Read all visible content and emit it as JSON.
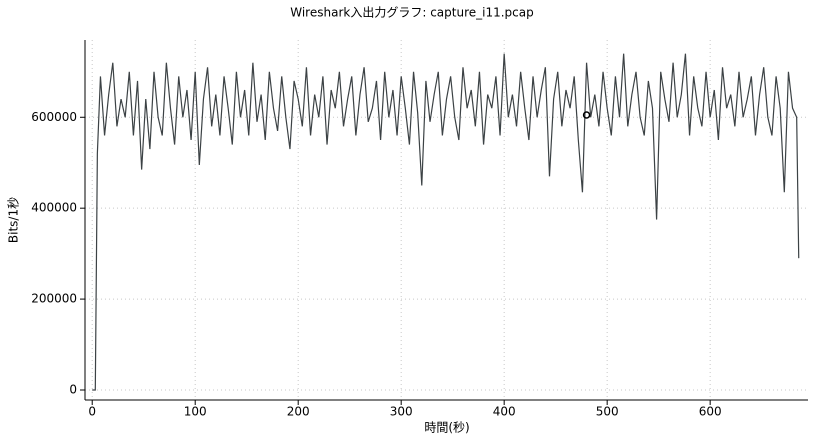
{
  "chart_data": {
    "type": "line",
    "title": "Wireshark入出力グラフ: capture_i11.pcap",
    "x_label": "時間(秒)",
    "y_label": "Bits/1秒",
    "xlim": [
      -7,
      695
    ],
    "ylim": [
      -22000,
      770000
    ],
    "xticks": [
      0,
      100,
      200,
      300,
      400,
      500,
      600
    ],
    "yticks": [
      0,
      200000,
      400000,
      600000
    ],
    "grid": true,
    "series": [
      {
        "color": "#3c4245",
        "x": [
          0,
          3,
          5,
          8,
          12,
          16,
          20,
          24,
          28,
          32,
          36,
          40,
          44,
          48,
          52,
          56,
          60,
          64,
          68,
          72,
          76,
          80,
          84,
          88,
          92,
          96,
          100,
          104,
          108,
          112,
          116,
          120,
          124,
          128,
          132,
          136,
          140,
          144,
          148,
          152,
          156,
          160,
          164,
          168,
          172,
          176,
          180,
          184,
          188,
          192,
          196,
          200,
          204,
          208,
          212,
          216,
          220,
          224,
          228,
          232,
          236,
          240,
          244,
          248,
          252,
          256,
          260,
          264,
          268,
          272,
          276,
          280,
          284,
          288,
          292,
          296,
          300,
          304,
          308,
          312,
          316,
          320,
          324,
          328,
          332,
          336,
          340,
          344,
          348,
          352,
          356,
          360,
          364,
          368,
          372,
          376,
          380,
          384,
          388,
          392,
          396,
          400,
          404,
          408,
          412,
          416,
          420,
          424,
          428,
          432,
          436,
          440,
          444,
          448,
          452,
          456,
          460,
          464,
          468,
          472,
          476,
          480,
          484,
          488,
          492,
          496,
          500,
          504,
          508,
          512,
          516,
          520,
          524,
          528,
          532,
          536,
          540,
          544,
          548,
          552,
          556,
          560,
          564,
          568,
          572,
          576,
          580,
          584,
          588,
          592,
          596,
          600,
          604,
          608,
          612,
          616,
          620,
          624,
          628,
          632,
          636,
          640,
          644,
          648,
          652,
          656,
          660,
          664,
          668,
          672,
          676,
          680,
          684,
          686
        ],
        "values": [
          0,
          0,
          520000,
          690000,
          560000,
          650000,
          720000,
          580000,
          640000,
          600000,
          700000,
          560000,
          680000,
          485000,
          640000,
          530000,
          700000,
          600000,
          560000,
          720000,
          620000,
          540000,
          690000,
          600000,
          660000,
          550000,
          700000,
          495000,
          640000,
          710000,
          580000,
          650000,
          560000,
          690000,
          620000,
          540000,
          700000,
          600000,
          660000,
          560000,
          720000,
          590000,
          650000,
          550000,
          700000,
          620000,
          570000,
          690000,
          600000,
          530000,
          680000,
          640000,
          580000,
          710000,
          560000,
          650000,
          600000,
          690000,
          540000,
          660000,
          620000,
          700000,
          580000,
          640000,
          690000,
          560000,
          650000,
          710000,
          590000,
          620000,
          680000,
          550000,
          700000,
          600000,
          660000,
          560000,
          690000,
          620000,
          540000,
          700000,
          610000,
          450000,
          680000,
          590000,
          650000,
          700000,
          560000,
          640000,
          690000,
          600000,
          550000,
          710000,
          620000,
          660000,
          580000,
          700000,
          540000,
          650000,
          620000,
          690000,
          560000,
          740000,
          600000,
          650000,
          580000,
          700000,
          620000,
          550000,
          690000,
          600000,
          660000,
          710000,
          470000,
          640000,
          700000,
          580000,
          660000,
          620000,
          690000,
          550000,
          435000,
          720000,
          600000,
          650000,
          580000,
          700000,
          620000,
          560000,
          690000,
          600000,
          740000,
          580000,
          650000,
          700000,
          600000,
          560000,
          680000,
          620000,
          375000,
          700000,
          640000,
          590000,
          720000,
          600000,
          650000,
          740000,
          560000,
          690000,
          620000,
          580000,
          700000,
          600000,
          660000,
          550000,
          710000,
          620000,
          650000,
          580000,
          700000,
          600000,
          640000,
          690000,
          560000,
          650000,
          710000,
          600000,
          560000,
          690000,
          620000,
          435000,
          700000,
          620000,
          600000,
          290000
        ]
      }
    ],
    "marker": {
      "x": 480,
      "y": 605000
    }
  }
}
